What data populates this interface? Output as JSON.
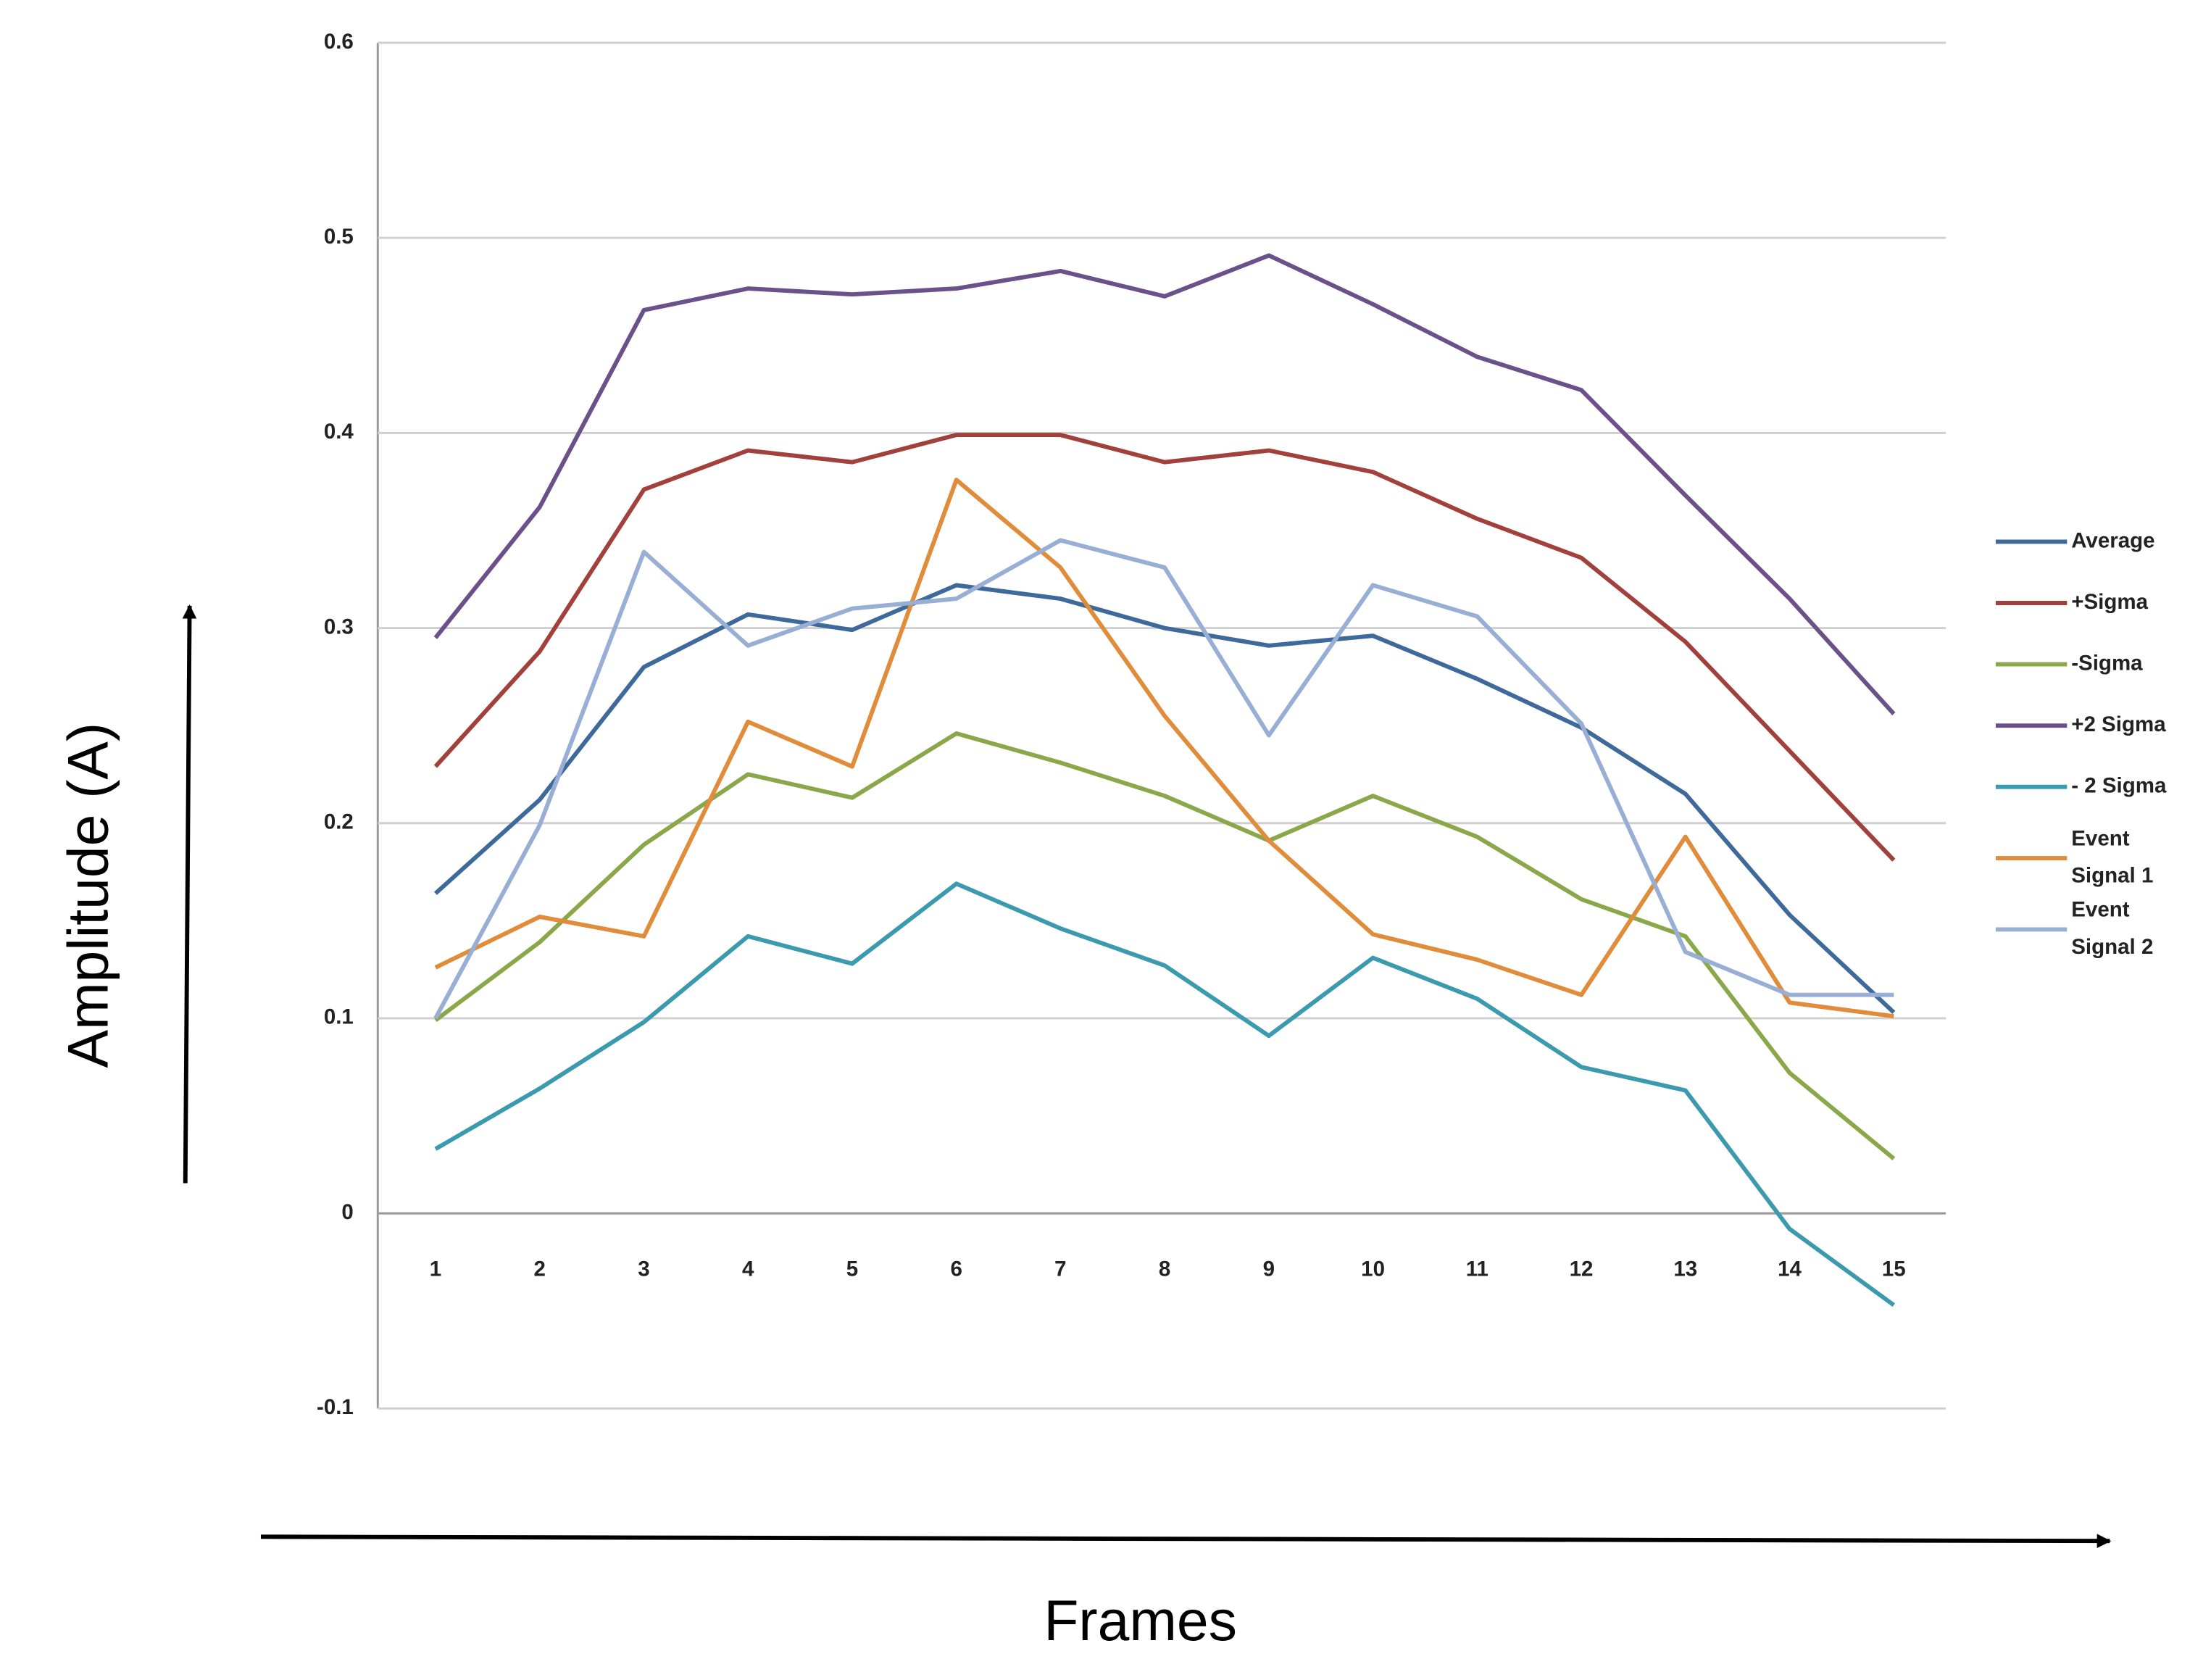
{
  "chart_data": {
    "type": "line",
    "y_label": "Amplitude (A)",
    "x_label": "Frames",
    "categories": [
      "1",
      "2",
      "3",
      "4",
      "5",
      "6",
      "7",
      "8",
      "9",
      "10",
      "11",
      "12",
      "13",
      "14",
      "15"
    ],
    "ylim": [
      -0.1,
      0.6
    ],
    "yticks": [
      -0.1,
      0,
      0.1,
      0.2,
      0.3,
      0.4,
      0.5,
      0.6
    ],
    "grid": true,
    "legend": "right",
    "series": [
      {
        "name": "Average",
        "color": "#3e6a9b",
        "values": [
          0.164,
          0.212,
          0.28,
          0.307,
          0.299,
          0.322,
          0.315,
          0.3,
          0.291,
          0.296,
          0.274,
          0.249,
          0.215,
          0.153,
          0.103
        ]
      },
      {
        "name": "+Sigma",
        "color": "#a2403c",
        "values": [
          0.229,
          0.288,
          0.371,
          0.391,
          0.385,
          0.399,
          0.399,
          0.385,
          0.391,
          0.38,
          0.356,
          0.336,
          0.293,
          0.237,
          0.181
        ]
      },
      {
        "name": "-Sigma",
        "color": "#8aa84a",
        "values": [
          0.099,
          0.139,
          0.189,
          0.225,
          0.213,
          0.246,
          0.231,
          0.214,
          0.191,
          0.214,
          0.193,
          0.161,
          0.142,
          0.072,
          0.028
        ]
      },
      {
        "name": "+2 Sigma",
        "color": "#6a5189",
        "values": [
          0.295,
          0.362,
          0.463,
          0.474,
          0.471,
          0.474,
          0.483,
          0.47,
          0.491,
          0.466,
          0.439,
          0.422,
          0.368,
          0.315,
          0.256
        ]
      },
      {
        "name": "- 2 Sigma",
        "color": "#3b9aae",
        "values": [
          0.033,
          0.064,
          0.098,
          0.142,
          0.128,
          0.169,
          0.146,
          0.127,
          0.091,
          0.131,
          0.11,
          0.075,
          0.063,
          -0.008,
          -0.047
        ]
      },
      {
        "name": "Event Signal 1",
        "color": "#e08c3b",
        "values": [
          0.126,
          0.152,
          0.142,
          0.252,
          0.229,
          0.376,
          0.331,
          0.255,
          0.191,
          0.143,
          0.13,
          0.112,
          0.193,
          0.108,
          0.101
        ]
      },
      {
        "name": "Event Signal 2",
        "color": "#98aed4",
        "values": [
          0.1,
          0.199,
          0.339,
          0.291,
          0.31,
          0.315,
          0.345,
          0.331,
          0.245,
          0.322,
          0.306,
          0.251,
          0.134,
          0.112,
          0.112
        ]
      }
    ]
  }
}
